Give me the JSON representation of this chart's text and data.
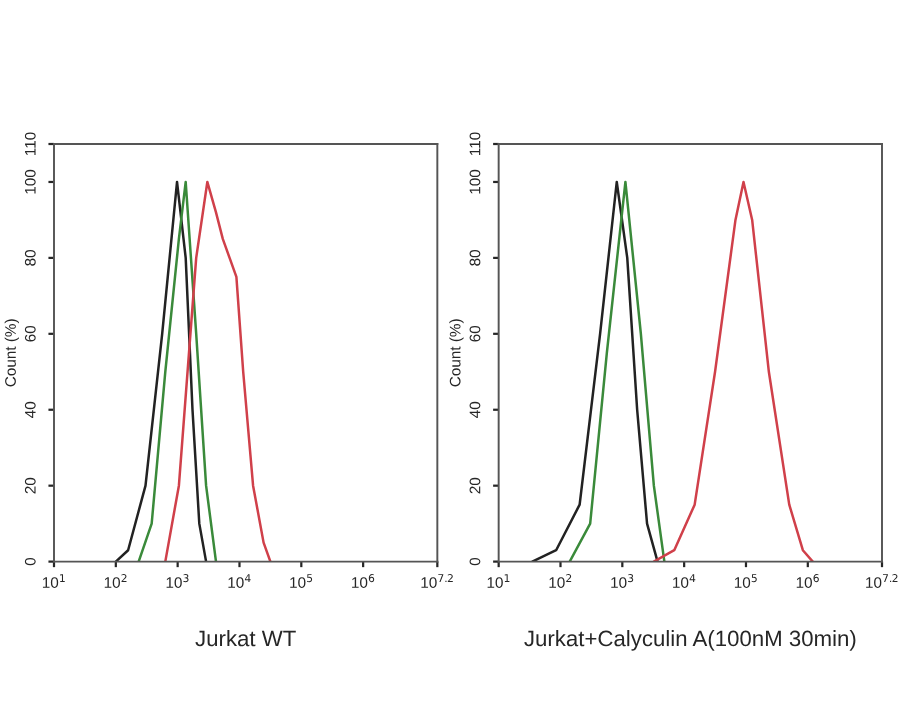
{
  "chart_data": [
    {
      "type": "line",
      "xlabel": "Jurkat WT",
      "ylabel": "Count (%)",
      "log": "x",
      "grid": false,
      "legend": false,
      "line_style": "solid",
      "marker": "none",
      "xlim": [
        10,
        15848932
      ],
      "ylim": [
        0,
        110
      ],
      "xticks": [
        {
          "value": 10,
          "label": "10$^{1}$"
        },
        {
          "value": 100,
          "label": "10$^{2}$"
        },
        {
          "value": 1000,
          "label": "10$^{3}$"
        },
        {
          "value": 10000,
          "label": "10$^{4}$"
        },
        {
          "value": 100000,
          "label": "10$^{5}$"
        },
        {
          "value": 1000000,
          "label": "10$^{6}$"
        },
        {
          "value": 15848932,
          "label": "10$^{7.2}$"
        }
      ],
      "yticks": [
        0,
        20,
        40,
        60,
        80,
        100,
        110
      ],
      "series": [
        {
          "color": "#222222",
          "x": [
            100,
            158,
            302,
            562,
            977,
            1349,
            1738,
            2239,
            2884
          ],
          "values": [
            0,
            3,
            20,
            60,
            100,
            80,
            40,
            10,
            0
          ]
        },
        {
          "color": "#3a8a3a",
          "x": [
            234,
            380,
            631,
            1047,
            1349,
            1995,
            2884,
            4169
          ],
          "values": [
            0,
            10,
            50,
            85,
            100,
            60,
            20,
            0
          ]
        },
        {
          "color": "#d0404a",
          "x": [
            631,
            1047,
            1995,
            3020,
            4169,
            5370,
            6918,
            8913,
            11482,
            16596,
            24547,
            31623
          ],
          "values": [
            0,
            20,
            80,
            100,
            92,
            85,
            80,
            75,
            50,
            20,
            5,
            0
          ]
        }
      ]
    },
    {
      "type": "line",
      "xlabel": "Jurkat+Calyculin A(100nM 30min)",
      "ylabel": "Count (%)",
      "log": "x",
      "grid": false,
      "legend": false,
      "line_style": "solid",
      "marker": "none",
      "xlim": [
        10,
        15848932
      ],
      "ylim": [
        0,
        110
      ],
      "xticks": [
        {
          "value": 10,
          "label": "10$^{1}$"
        },
        {
          "value": 100,
          "label": "10$^{2}$"
        },
        {
          "value": 1000,
          "label": "10$^{3}$"
        },
        {
          "value": 10000,
          "label": "10$^{4}$"
        },
        {
          "value": 100000,
          "label": "10$^{5}$"
        },
        {
          "value": 1000000,
          "label": "10$^{6}$"
        },
        {
          "value": 15848932,
          "label": "10$^{7.2}$"
        }
      ],
      "yticks": [
        0,
        20,
        40,
        60,
        80,
        100,
        110
      ],
      "series": [
        {
          "color": "#222222",
          "x": [
            35,
            85,
            204,
            437,
            813,
            1202,
            1738,
            2512,
            3715
          ],
          "values": [
            0,
            3,
            15,
            60,
            100,
            80,
            40,
            10,
            0
          ]
        },
        {
          "color": "#3a8a3a",
          "x": [
            141,
            302,
            562,
            1122,
            1995,
            3236,
            4786
          ],
          "values": [
            0,
            10,
            55,
            100,
            60,
            20,
            0
          ]
        },
        {
          "color": "#d0404a",
          "x": [
            3236,
            6918,
            14791,
            31623,
            67608,
            91201,
            125893,
            234423,
            501187,
            831764,
            1202264
          ],
          "values": [
            0,
            3,
            15,
            50,
            90,
            100,
            90,
            50,
            15,
            3,
            0
          ]
        }
      ]
    }
  ]
}
